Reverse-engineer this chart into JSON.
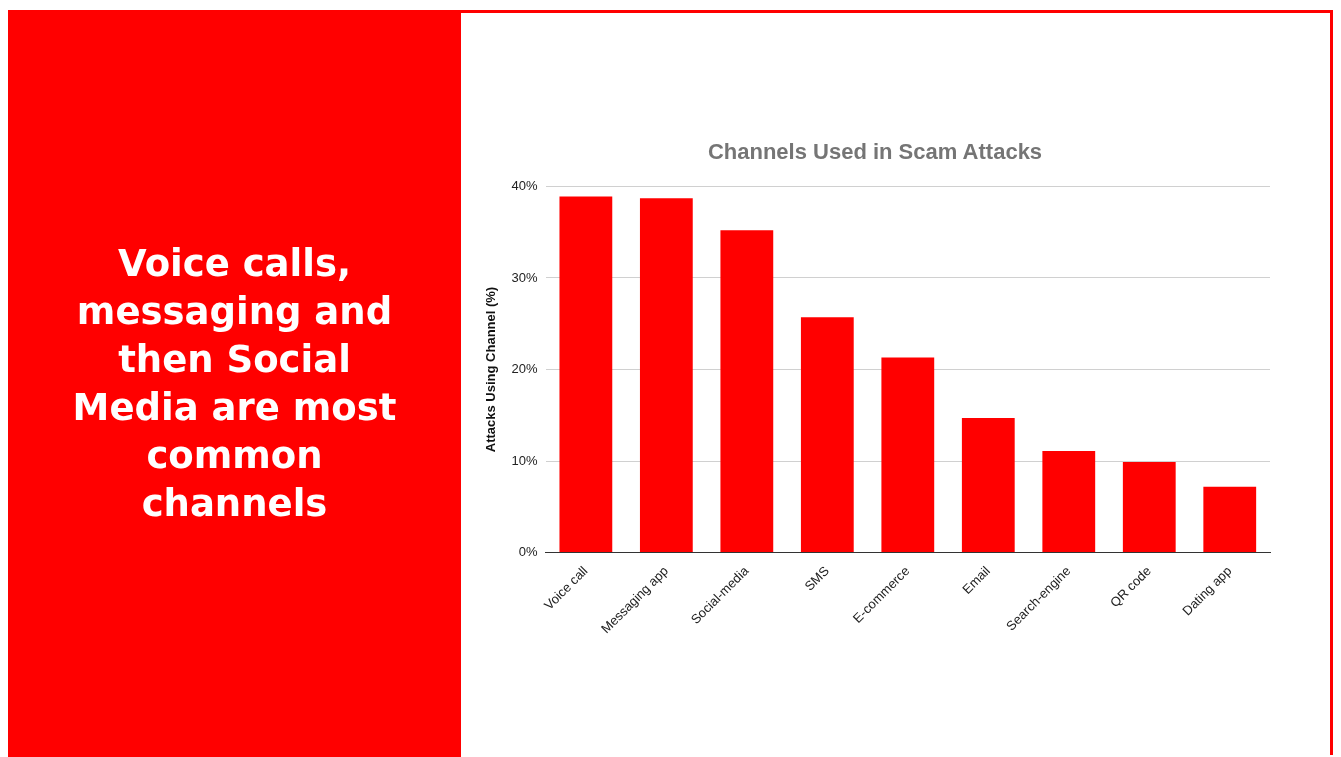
{
  "chart_data": {
    "type": "bar",
    "title": "Channels Used in Scam Attacks",
    "ylabel": "Attacks Using Channel (%)",
    "annotations": [
      "Voice calls, messaging and then Social Media are most common channels"
    ],
    "categories": [
      "Voice call",
      "Messaging app",
      "Social-media",
      "SMS",
      "E-commerce",
      "Email",
      "Search-engine",
      "QR code",
      "Dating app"
    ],
    "values": [
      38.9,
      38.7,
      35.2,
      25.7,
      21.3,
      14.7,
      11.1,
      9.9,
      7.2
    ],
    "color": "#ff0000",
    "ylim": [
      0,
      40
    ],
    "yticks": [
      {
        "value": 0,
        "label": "0%"
      },
      {
        "value": 10,
        "label": "10%"
      },
      {
        "value": 20,
        "label": "20%"
      },
      {
        "value": 30,
        "label": "30%"
      },
      {
        "value": 40,
        "label": "40%"
      }
    ],
    "grid": "y",
    "legend": false
  }
}
